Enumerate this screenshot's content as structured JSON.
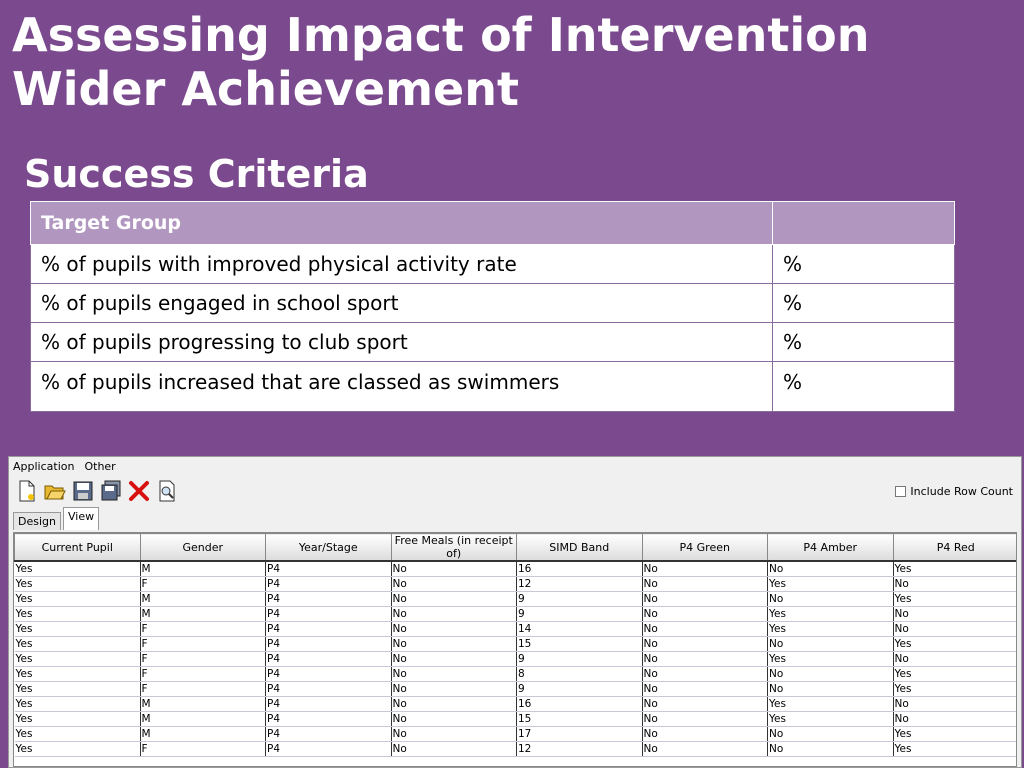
{
  "slide": {
    "title_line1": "Assessing Impact of Intervention",
    "title_line2": "Wider Achievement",
    "subtitle": "Success Criteria"
  },
  "criteria_table": {
    "header": [
      "Target Group",
      ""
    ],
    "rows": [
      [
        "% of pupils with improved physical activity rate",
        "%"
      ],
      [
        "% of pupils engaged in school sport",
        "%"
      ],
      [
        "% of pupils progressing to club sport",
        "%"
      ],
      [
        "% of pupils increased that are classed as swimmers",
        "%"
      ]
    ]
  },
  "app": {
    "menu": [
      "Application",
      "Other"
    ],
    "toolbar_icons": [
      "new-document-icon",
      "open-folder-icon",
      "save-icon",
      "save-all-icon",
      "delete-icon",
      "print-preview-icon"
    ],
    "include_row_count_label": "Include Row Count",
    "include_row_count_checked": false,
    "tabs": [
      "Design",
      "View"
    ],
    "active_tab": "View",
    "grid": {
      "columns": [
        "Current Pupil",
        "Gender",
        "Year/Stage",
        "Free Meals (in receipt of)",
        "SIMD Band",
        "P4 Green",
        "P4 Amber",
        "P4 Red"
      ],
      "rows": [
        [
          "Yes",
          "M",
          "P4",
          "No",
          "16",
          "No",
          "No",
          "Yes"
        ],
        [
          "Yes",
          "F",
          "P4",
          "No",
          "12",
          "No",
          "Yes",
          "No"
        ],
        [
          "Yes",
          "M",
          "P4",
          "No",
          "9",
          "No",
          "No",
          "Yes"
        ],
        [
          "Yes",
          "M",
          "P4",
          "No",
          "9",
          "No",
          "Yes",
          "No"
        ],
        [
          "Yes",
          "F",
          "P4",
          "No",
          "14",
          "No",
          "Yes",
          "No"
        ],
        [
          "Yes",
          "F",
          "P4",
          "No",
          "15",
          "No",
          "No",
          "Yes"
        ],
        [
          "Yes",
          "F",
          "P4",
          "No",
          "9",
          "No",
          "Yes",
          "No"
        ],
        [
          "Yes",
          "F",
          "P4",
          "No",
          "8",
          "No",
          "No",
          "Yes"
        ],
        [
          "Yes",
          "F",
          "P4",
          "No",
          "9",
          "No",
          "No",
          "Yes"
        ],
        [
          "Yes",
          "M",
          "P4",
          "No",
          "16",
          "No",
          "Yes",
          "No"
        ],
        [
          "Yes",
          "M",
          "P4",
          "No",
          "15",
          "No",
          "Yes",
          "No"
        ],
        [
          "Yes",
          "M",
          "P4",
          "No",
          "17",
          "No",
          "No",
          "Yes"
        ],
        [
          "Yes",
          "F",
          "P4",
          "No",
          "12",
          "No",
          "No",
          "Yes"
        ]
      ]
    }
  }
}
